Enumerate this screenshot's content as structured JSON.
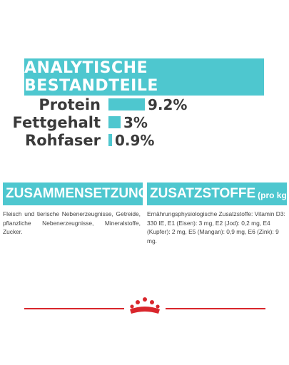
{
  "header": {
    "title": "ANALYTISCHE BESTANDTEILE"
  },
  "nutrients": [
    {
      "label": "Protein",
      "value_text": "9.2%",
      "value": 9.2
    },
    {
      "label": "Fettgehalt",
      "value_text": "3%",
      "value": 3
    },
    {
      "label": "Rohfaser",
      "value_text": "0.9%",
      "value": 0.9
    }
  ],
  "composition": {
    "title": "ZUSAMMENSETZUNG",
    "text": "Fleisch und tierische Nebenerzeugnisse, Getreide, pflanzliche Nebenerzeugnisse, Mineralstoffe, Zucker."
  },
  "additives": {
    "title": "ZUSATZSTOFFE",
    "title_suffix": "(pro kg)",
    "text": "Ernährungsphysiologische Zusatzstoffe: Vitamin D3: 330 IE, E1 (Eisen): 3 mg, E2 (Jod): 0,2 mg, E4 (Kupfer): 2 mg, E5 (Mangan): 0,9 mg, E6 (Zink): 9 mg."
  },
  "colors": {
    "accent": "#4ec7cf",
    "brand_red": "#d9262c"
  },
  "logo": {
    "name": "royal-canin-crown"
  }
}
